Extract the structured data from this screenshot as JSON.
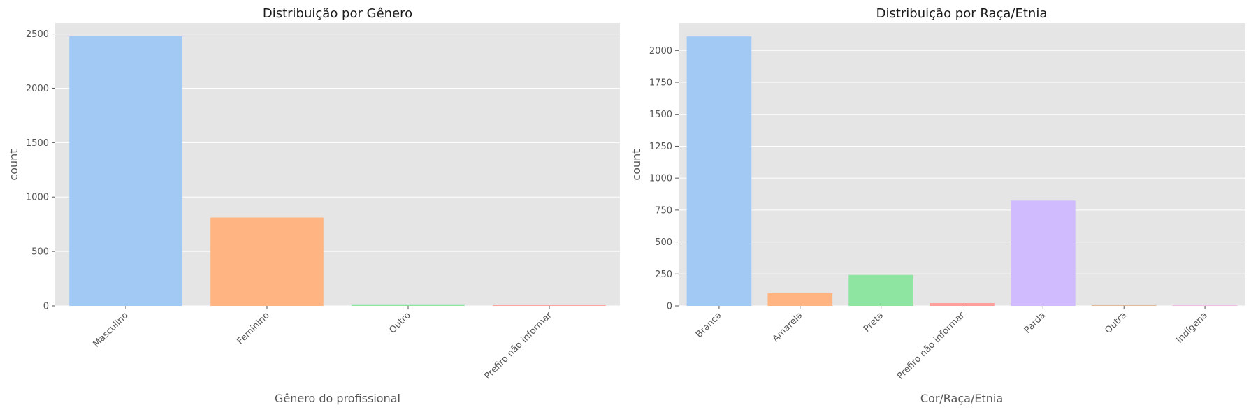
{
  "chart_data": [
    {
      "type": "bar",
      "title": "Distribuição por Gênero",
      "xlabel": "Gênero do profissional",
      "ylabel": "count",
      "categories": [
        "Masculino",
        "Feminino",
        "Outro",
        "Prefiro não informar"
      ],
      "values": [
        2478,
        812,
        8,
        6
      ],
      "colors": [
        "#a1c9f4",
        "#ffb482",
        "#8de5a1",
        "#ff9f9b"
      ],
      "ylim": [
        0,
        2600
      ],
      "yticks": [
        0,
        500,
        1000,
        1500,
        2000,
        2500
      ],
      "grid": true,
      "style": "ggplot",
      "xtick_rotation": 45
    },
    {
      "type": "bar",
      "title": "Distribuição por Raça/Etnia",
      "xlabel": "Cor/Raça/Etnia",
      "ylabel": "count",
      "categories": [
        "Branca",
        "Amarela",
        "Preta",
        "Prefiro não informar",
        "Parda",
        "Outra",
        "Indígena"
      ],
      "values": [
        2110,
        100,
        242,
        22,
        824,
        6,
        4
      ],
      "colors": [
        "#a1c9f4",
        "#ffb482",
        "#8de5a1",
        "#ff9f9b",
        "#d0bbff",
        "#debb9b",
        "#fab0e4"
      ],
      "ylim": [
        0,
        2215
      ],
      "yticks": [
        0,
        250,
        500,
        750,
        1000,
        1250,
        1500,
        1750,
        2000
      ],
      "grid": true,
      "style": "ggplot",
      "xtick_rotation": 45
    }
  ]
}
